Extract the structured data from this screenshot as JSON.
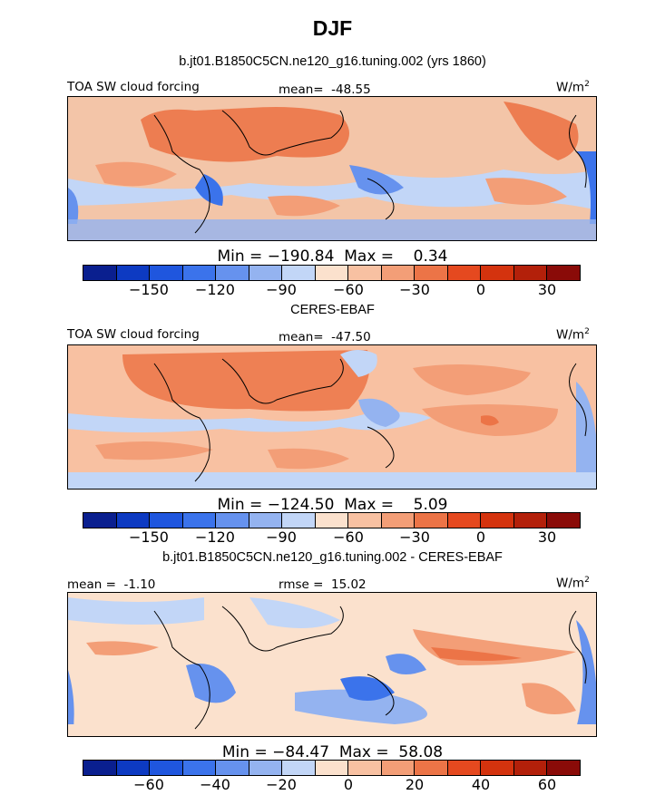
{
  "title": "DJF",
  "panels": [
    {
      "header": "b.jt01.B1850C5CN.ne120_g16.tuning.002 (yrs 1860)",
      "left_label": "TOA SW cloud forcing",
      "center_label": "mean=  -48.55",
      "units": "W/m",
      "units_sup": "2",
      "minmax": "Min = −190.84  Max =    0.34",
      "colorbar_ticks": [
        "−150",
        "−120",
        "−90",
        "−60",
        "−30",
        "0",
        "30"
      ]
    },
    {
      "header": "CERES-EBAF",
      "left_label": "TOA SW cloud forcing",
      "center_label": "mean=  -47.50",
      "units": "W/m",
      "units_sup": "2",
      "minmax": "Min = −124.50  Max =    5.09",
      "colorbar_ticks": [
        "−150",
        "−120",
        "−90",
        "−60",
        "−30",
        "0",
        "30"
      ]
    },
    {
      "header": "b.jt01.B1850C5CN.ne120_g16.tuning.002 - CERES-EBAF",
      "left_label": "mean =  -1.10",
      "center_label": "rmse =  15.02",
      "units": "W/m",
      "units_sup": "2",
      "minmax": "Min = −84.47  Max =  58.08",
      "colorbar_ticks": [
        "−60",
        "−40",
        "−20",
        "0",
        "20",
        "40",
        "60"
      ]
    }
  ],
  "colors": {
    "scale": [
      "#0a1f8f",
      "#0d3ac2",
      "#1f56de",
      "#3b73eb",
      "#6692ee",
      "#94b3f0",
      "#c2d6f7",
      "#fbe1cd",
      "#f8c1a2",
      "#f39e77",
      "#ec7447",
      "#e5491f",
      "#d4330e",
      "#b3200a",
      "#8a0b08"
    ]
  }
}
